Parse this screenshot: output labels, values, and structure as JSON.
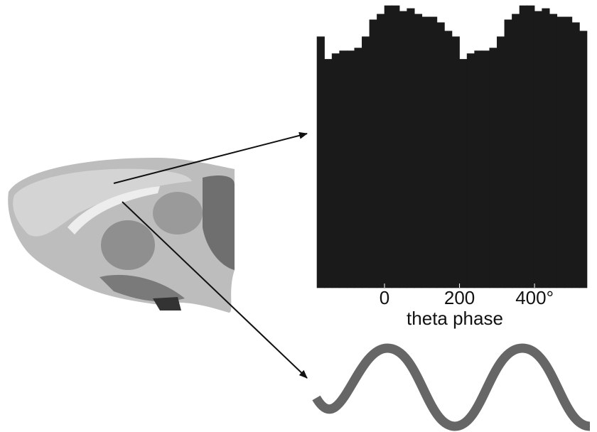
{
  "chart_data": {
    "type": "histogram",
    "xlabel": "theta phase",
    "bins": [
      -180,
      -160,
      -140,
      -120,
      -100,
      -80,
      -60,
      -40,
      -20,
      0,
      20,
      40,
      60,
      80,
      100,
      120,
      140,
      160,
      180,
      200,
      220,
      240,
      260,
      280,
      300,
      320,
      340,
      360,
      380,
      400,
      420,
      440,
      460,
      480,
      500,
      520,
      540
    ],
    "counts": [
      89,
      81,
      83,
      84,
      84,
      85,
      89,
      95,
      97,
      100,
      100,
      98,
      99,
      97,
      96,
      96,
      94,
      91,
      89,
      81,
      83,
      84,
      84,
      85,
      89,
      95,
      97,
      100,
      100,
      98,
      99,
      97,
      96,
      96,
      94,
      91
    ],
    "color": "#1a1a1a",
    "xlim": [
      -180,
      540
    ],
    "ylim": [
      0,
      100
    ],
    "xticks": [
      0,
      200,
      {
        "value": 400,
        "label": "400°"
      }
    ]
  }
}
